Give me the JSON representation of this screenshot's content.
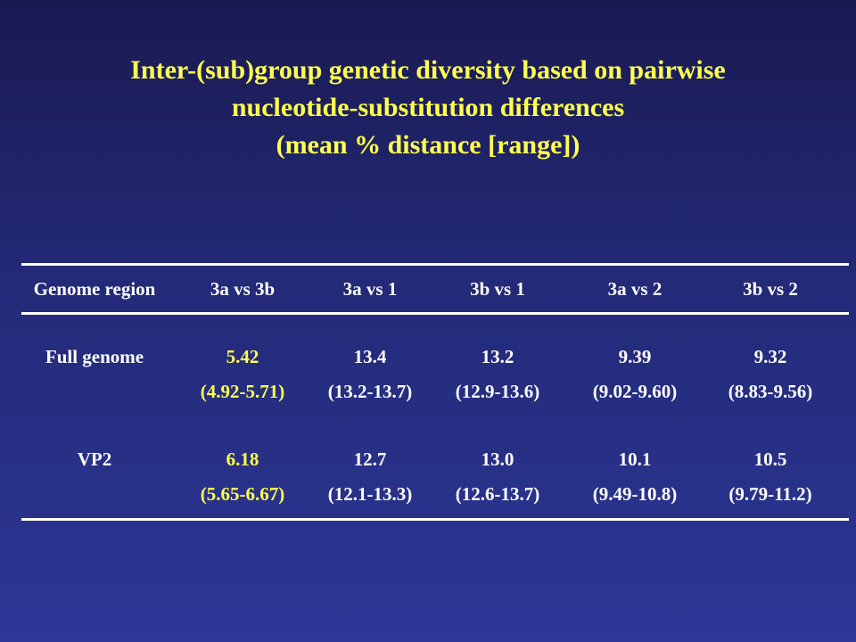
{
  "title": {
    "line1": "Inter-(sub)group genetic diversity based on pairwise",
    "line2": "nucleotide-substitution differences",
    "line3": "(mean % distance [range])"
  },
  "table": {
    "headers": [
      "Genome region",
      "3a vs 3b",
      "3a vs 1",
      "3b vs 1",
      "3a vs 2",
      "3b vs 2"
    ],
    "rows": [
      {
        "region": "Full genome",
        "means": [
          "5.42",
          "13.4",
          "13.2",
          "9.39",
          "9.32"
        ],
        "ranges": [
          "(4.92-5.71)",
          "(13.2-13.7)",
          "(12.9-13.6)",
          "(9.02-9.60)",
          "(8.83-9.56)"
        ]
      },
      {
        "region": "VP2",
        "means": [
          "6.18",
          "12.7",
          "13.0",
          "10.1",
          "10.5"
        ],
        "ranges": [
          "(5.65-6.67)",
          "(12.1-13.3)",
          "(12.6-13.7)",
          "(9.49-10.8)",
          "(9.79-11.2)"
        ]
      }
    ]
  },
  "colors": {
    "highlight": "#ffff4d",
    "text": "#ffffff",
    "background_top": "#1a1a52",
    "background_bottom": "#2d3796"
  }
}
